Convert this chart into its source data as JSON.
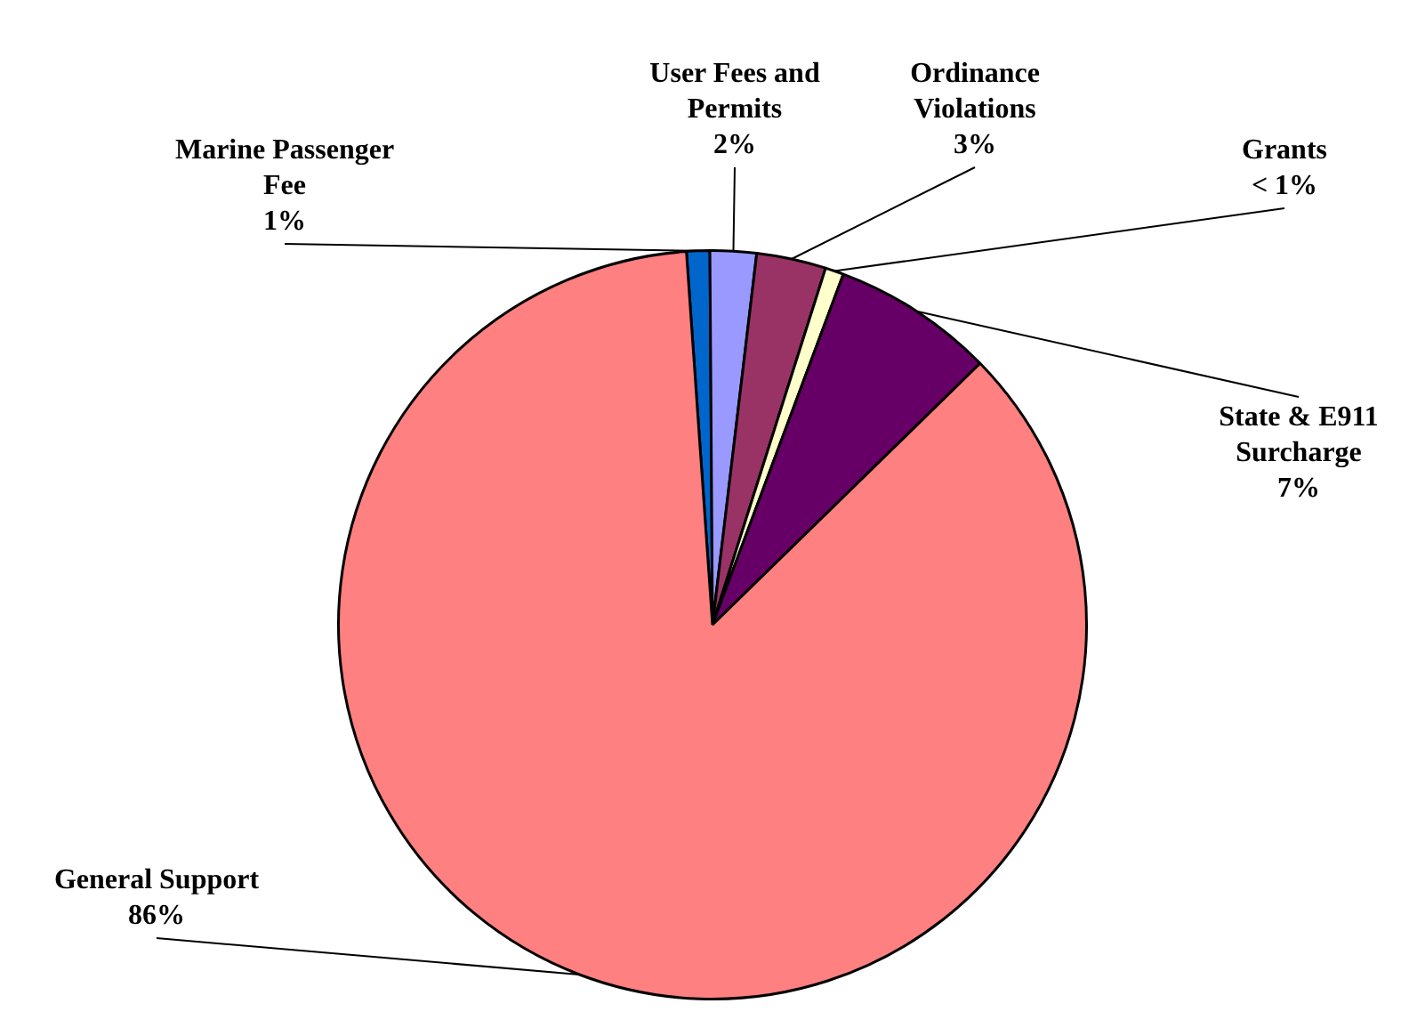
{
  "chart_data": {
    "type": "pie",
    "categories": [
      "Marine Passenger Fee",
      "User Fees and Permits",
      "Ordinance Violations",
      "Grants",
      "State & E911 Surcharge",
      "General Support"
    ],
    "values": [
      1,
      2,
      3,
      0.8,
      7,
      86.2
    ],
    "colors": [
      "#0066cc",
      "#9999ff",
      "#993366",
      "#ffffcc",
      "#660066",
      "#ff8080"
    ],
    "value_labels": [
      "1%",
      "2%",
      "3%",
      "< 1%",
      "7%",
      "86%"
    ],
    "legend": false
  }
}
